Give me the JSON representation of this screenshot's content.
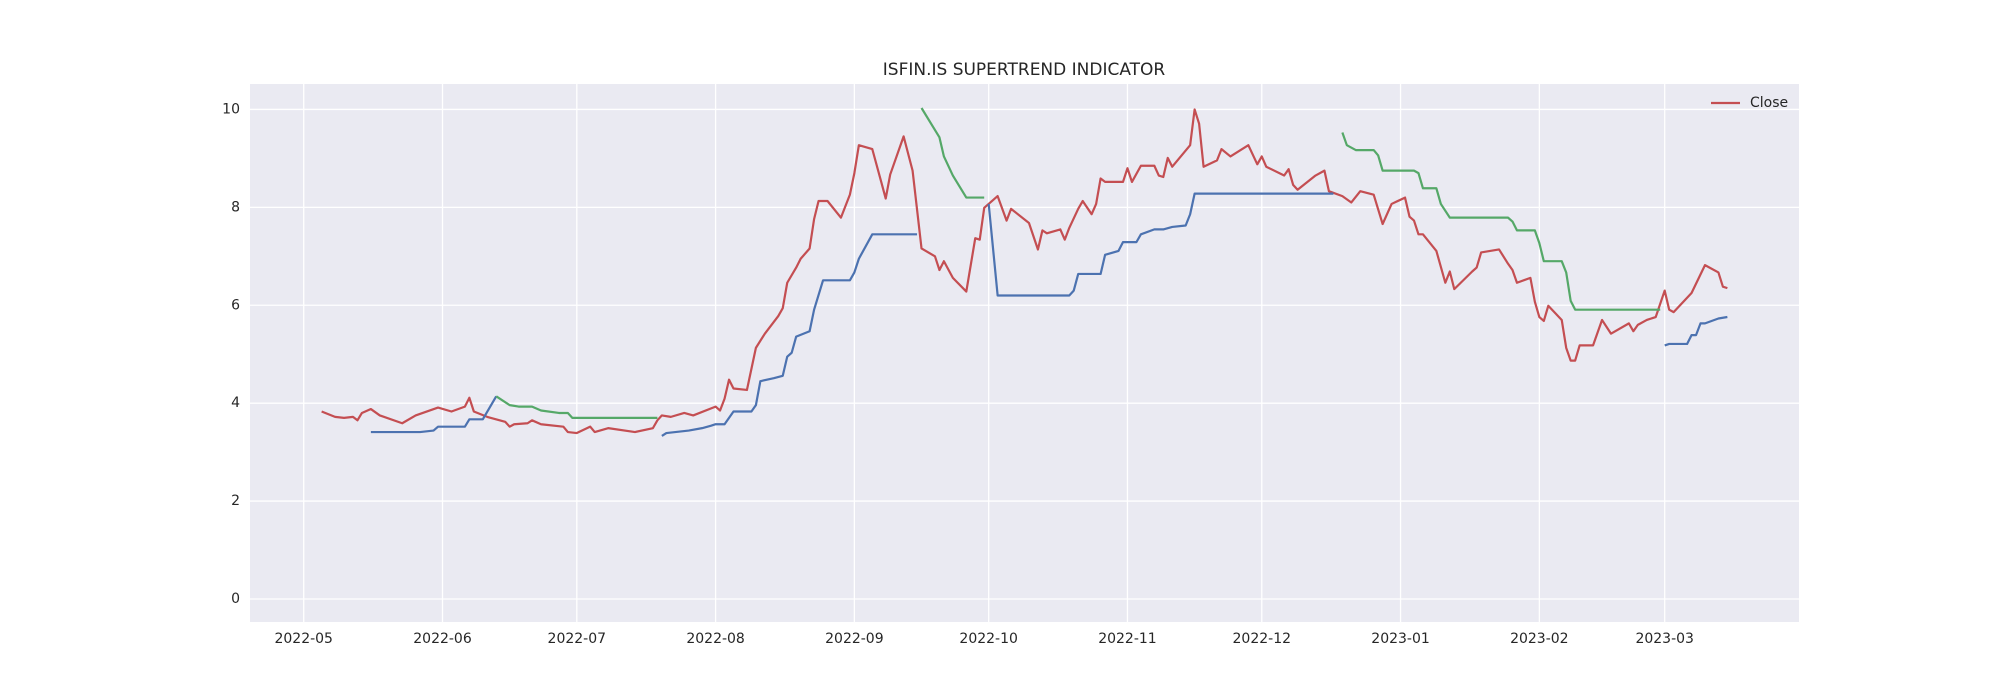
{
  "chart_data": {
    "type": "line",
    "title": "ISFIN.IS SUPERTREND INDICATOR",
    "xlim": [
      "2022-04-19",
      "2023-03-31"
    ],
    "xticks": [
      {
        "value": "2022-05-01",
        "label": "2022-05"
      },
      {
        "value": "2022-06-01",
        "label": "2022-06"
      },
      {
        "value": "2022-07-01",
        "label": "2022-07"
      },
      {
        "value": "2022-08-01",
        "label": "2022-08"
      },
      {
        "value": "2022-09-01",
        "label": "2022-09"
      },
      {
        "value": "2022-10-01",
        "label": "2022-10"
      },
      {
        "value": "2022-11-01",
        "label": "2022-11"
      },
      {
        "value": "2022-12-01",
        "label": "2022-12"
      },
      {
        "value": "2023-01-01",
        "label": "2023-01"
      },
      {
        "value": "2023-02-01",
        "label": "2023-02"
      },
      {
        "value": "2023-03-01",
        "label": "2023-03"
      }
    ],
    "ylim": [
      -0.47,
      10.52
    ],
    "yticks": [
      0,
      2,
      4,
      6,
      8,
      10
    ],
    "grid": true,
    "legend": "upper right",
    "series": [
      {
        "name": "Close",
        "color": "#c44e52",
        "x": [
          "2022-05-05",
          "2022-05-08",
          "2022-05-10",
          "2022-05-12",
          "2022-05-13",
          "2022-05-14",
          "2022-05-16",
          "2022-05-18",
          "2022-05-23",
          "2022-05-26",
          "2022-05-31",
          "2022-06-03",
          "2022-06-06",
          "2022-06-07",
          "2022-06-08",
          "2022-06-11",
          "2022-06-15",
          "2022-06-16",
          "2022-06-17",
          "2022-06-20",
          "2022-06-21",
          "2022-06-23",
          "2022-06-28",
          "2022-06-29",
          "2022-07-01",
          "2022-07-04",
          "2022-07-05",
          "2022-07-08",
          "2022-07-14",
          "2022-07-18",
          "2022-07-19",
          "2022-07-20",
          "2022-07-22",
          "2022-07-25",
          "2022-07-27",
          "2022-08-01",
          "2022-08-02",
          "2022-08-03",
          "2022-08-04",
          "2022-08-05",
          "2022-08-08",
          "2022-08-10",
          "2022-08-12",
          "2022-08-15",
          "2022-08-16",
          "2022-08-17",
          "2022-08-19",
          "2022-08-20",
          "2022-08-22",
          "2022-08-23",
          "2022-08-24",
          "2022-08-26",
          "2022-08-29",
          "2022-08-31",
          "2022-09-01",
          "2022-09-02",
          "2022-09-05",
          "2022-09-07",
          "2022-09-08",
          "2022-09-09",
          "2022-09-12",
          "2022-09-14",
          "2022-09-16",
          "2022-09-19",
          "2022-09-20",
          "2022-09-21",
          "2022-09-23",
          "2022-09-26",
          "2022-09-28",
          "2022-09-29",
          "2022-09-30",
          "2022-10-03",
          "2022-10-05",
          "2022-10-06",
          "2022-10-10",
          "2022-10-12",
          "2022-10-13",
          "2022-10-14",
          "2022-10-17",
          "2022-10-18",
          "2022-10-19",
          "2022-10-21",
          "2022-10-22",
          "2022-10-24",
          "2022-10-25",
          "2022-10-26",
          "2022-10-27",
          "2022-10-31",
          "2022-11-01",
          "2022-11-02",
          "2022-11-04",
          "2022-11-07",
          "2022-11-08",
          "2022-11-09",
          "2022-11-10",
          "2022-11-11",
          "2022-11-15",
          "2022-11-16",
          "2022-11-17",
          "2022-11-18",
          "2022-11-21",
          "2022-11-22",
          "2022-11-24",
          "2022-11-28",
          "2022-11-30",
          "2022-12-01",
          "2022-12-02",
          "2022-12-06",
          "2022-12-07",
          "2022-12-08",
          "2022-12-09",
          "2022-12-13",
          "2022-12-15",
          "2022-12-16",
          "2022-12-19",
          "2022-12-21",
          "2022-12-23",
          "2022-12-26",
          "2022-12-28",
          "2022-12-30",
          "2023-01-02",
          "2023-01-03",
          "2023-01-04",
          "2023-01-05",
          "2023-01-06",
          "2023-01-09",
          "2023-01-11",
          "2023-01-12",
          "2023-01-13",
          "2023-01-17",
          "2023-01-18",
          "2023-01-19",
          "2023-01-23",
          "2023-01-25",
          "2023-01-26",
          "2023-01-27",
          "2023-01-30",
          "2023-01-31",
          "2023-02-01",
          "2023-02-02",
          "2023-02-03",
          "2023-02-06",
          "2023-02-07",
          "2023-02-08",
          "2023-02-09",
          "2023-02-10",
          "2023-02-13",
          "2023-02-15",
          "2023-02-17",
          "2023-02-21",
          "2023-02-22",
          "2023-02-23",
          "2023-02-25",
          "2023-02-27",
          "2023-03-01",
          "2023-03-02",
          "2023-03-03",
          "2023-03-07",
          "2023-03-10",
          "2023-03-13",
          "2023-03-14",
          "2023-03-15"
        ],
        "values": [
          3.83,
          3.72,
          3.7,
          3.72,
          3.65,
          3.8,
          3.88,
          3.75,
          3.59,
          3.75,
          3.91,
          3.83,
          3.93,
          4.11,
          3.83,
          3.72,
          3.62,
          3.52,
          3.57,
          3.59,
          3.65,
          3.57,
          3.52,
          3.41,
          3.39,
          3.52,
          3.41,
          3.49,
          3.41,
          3.49,
          3.65,
          3.75,
          3.72,
          3.8,
          3.75,
          3.93,
          3.85,
          4.09,
          4.48,
          4.3,
          4.27,
          5.13,
          5.42,
          5.78,
          5.94,
          6.46,
          6.77,
          6.95,
          7.16,
          7.76,
          8.13,
          8.13,
          7.79,
          8.26,
          8.7,
          9.27,
          9.19,
          8.52,
          8.18,
          8.67,
          9.45,
          8.75,
          7.16,
          7.0,
          6.72,
          6.9,
          6.56,
          6.28,
          7.37,
          7.34,
          7.99,
          8.23,
          7.73,
          7.97,
          7.68,
          7.14,
          7.53,
          7.47,
          7.55,
          7.34,
          7.58,
          7.97,
          8.13,
          7.86,
          8.07,
          8.59,
          8.52,
          8.52,
          8.8,
          8.52,
          8.85,
          8.85,
          8.65,
          8.62,
          9.01,
          8.83,
          9.27,
          10.0,
          9.71,
          8.83,
          8.96,
          9.19,
          9.04,
          9.27,
          8.88,
          9.04,
          8.83,
          8.65,
          8.78,
          8.46,
          8.36,
          8.65,
          8.75,
          8.33,
          8.23,
          8.1,
          8.33,
          8.26,
          7.66,
          8.07,
          8.2,
          7.81,
          7.73,
          7.45,
          7.45,
          7.11,
          6.46,
          6.69,
          6.33,
          6.69,
          6.77,
          7.08,
          7.14,
          6.85,
          6.72,
          6.46,
          6.56,
          6.07,
          5.76,
          5.68,
          5.99,
          5.7,
          5.13,
          4.87,
          4.87,
          5.18,
          5.18,
          5.7,
          5.42,
          5.63,
          5.47,
          5.6,
          5.7,
          5.76,
          6.3,
          5.91,
          5.86,
          6.25,
          6.82,
          6.67,
          6.38,
          6.35
        ]
      },
      {
        "color": "#4c72b0",
        "x": [
          "2022-05-16",
          "2022-05-27",
          "2022-05-30",
          "2022-05-31",
          "2022-06-06",
          "2022-06-07",
          "2022-06-10",
          "2022-06-13",
          "2022-06-20",
          "2022-07-20",
          "2022-07-21",
          "2022-07-26",
          "2022-07-29",
          "2022-07-31",
          "2022-08-01",
          "2022-08-03",
          "2022-08-05",
          "2022-08-09",
          "2022-08-10",
          "2022-08-11",
          "2022-08-14",
          "2022-08-16",
          "2022-08-17",
          "2022-08-18",
          "2022-08-19",
          "2022-08-22",
          "2022-08-23",
          "2022-08-25",
          "2022-08-31",
          "2022-09-01",
          "2022-09-02",
          "2022-09-05",
          "2022-09-15",
          "2022-09-20",
          "2022-10-01",
          "2022-10-03",
          "2022-10-19",
          "2022-10-20",
          "2022-10-21",
          "2022-10-26",
          "2022-10-27",
          "2022-10-30",
          "2022-10-31",
          "2022-11-03",
          "2022-11-04",
          "2022-11-07",
          "2022-11-09",
          "2022-11-11",
          "2022-11-14",
          "2022-11-15",
          "2022-11-16",
          "2022-12-17",
          "2023-01-15",
          "2023-03-01",
          "2023-03-02",
          "2023-03-06",
          "2023-03-07",
          "2023-03-08",
          "2023-03-09",
          "2023-03-10",
          "2023-03-13",
          "2023-03-15"
        ],
        "values": [
          3.41,
          3.41,
          3.44,
          3.52,
          3.52,
          3.67,
          3.67,
          4.14,
          null,
          3.33,
          3.39,
          3.44,
          3.49,
          3.54,
          3.57,
          3.57,
          3.83,
          3.83,
          3.96,
          4.45,
          4.51,
          4.56,
          4.95,
          5.03,
          5.36,
          5.47,
          5.91,
          6.51,
          6.51,
          6.67,
          6.95,
          7.45,
          7.45,
          null,
          8.07,
          6.2,
          6.2,
          6.3,
          6.64,
          6.64,
          7.03,
          7.11,
          7.29,
          7.29,
          7.45,
          7.55,
          7.55,
          7.6,
          7.63,
          7.86,
          8.28,
          8.28,
          null,
          5.18,
          5.21,
          5.21,
          5.39,
          5.39,
          5.63,
          5.63,
          5.73,
          5.76
        ]
      },
      {
        "color": "#55a868",
        "x": [
          "2022-06-13",
          "2022-06-16",
          "2022-06-18",
          "2022-06-21",
          "2022-06-23",
          "2022-06-27",
          "2022-06-29",
          "2022-06-30",
          "2022-07-19",
          "2022-08-15",
          "2022-09-16",
          "2022-09-20",
          "2022-09-21",
          "2022-09-23",
          "2022-09-26",
          "2022-09-30",
          "2022-11-15",
          "2022-12-19",
          "2022-12-20",
          "2022-12-22",
          "2022-12-26",
          "2022-12-27",
          "2022-12-28",
          "2023-01-04",
          "2023-01-05",
          "2023-01-06",
          "2023-01-09",
          "2023-01-10",
          "2023-01-12",
          "2023-01-25",
          "2023-01-26",
          "2023-01-27",
          "2023-01-31",
          "2023-02-01",
          "2023-02-02",
          "2023-02-06",
          "2023-02-07",
          "2023-02-08",
          "2023-02-09",
          "2023-02-28"
        ],
        "values": [
          4.14,
          3.96,
          3.93,
          3.93,
          3.85,
          3.8,
          3.8,
          3.7,
          3.7,
          null,
          10.03,
          9.43,
          9.04,
          8.65,
          8.2,
          8.2,
          null,
          9.53,
          9.27,
          9.17,
          9.17,
          9.06,
          8.75,
          8.75,
          8.7,
          8.39,
          8.39,
          8.07,
          7.79,
          7.79,
          7.71,
          7.53,
          7.53,
          7.27,
          6.9,
          6.9,
          6.67,
          6.09,
          5.91,
          5.91
        ]
      }
    ]
  }
}
